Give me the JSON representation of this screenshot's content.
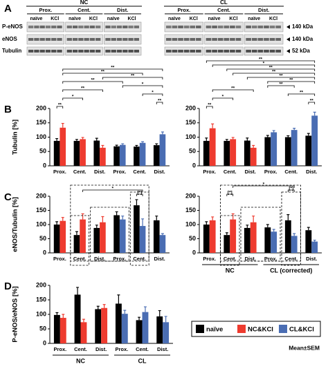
{
  "blot": {
    "panel": "A",
    "groups": [
      "NC",
      "CL"
    ],
    "regions": [
      "Prox.",
      "Cent.",
      "Dist."
    ],
    "conditions": [
      "naïve",
      "KCl"
    ],
    "rows": [
      {
        "label": "P-eNOS",
        "size": "140 kDa"
      },
      {
        "label": "eNOS",
        "size": "140 kDa"
      },
      {
        "label": "Tubulin",
        "size": "52 kDa"
      }
    ]
  },
  "legend": {
    "note": "Mean±SEM"
  },
  "chart_data": [
    {
      "type": "bar",
      "panel": "B",
      "ylabel": "Tubulin [%]",
      "categories": [
        "Prox.",
        "Cent.",
        "Dist.",
        "Prox.",
        "Cent.",
        "Dist."
      ],
      "ylim": [
        0,
        200
      ],
      "yticks": [
        0,
        50,
        100,
        150,
        200
      ],
      "series": [
        {
          "color": "#000000",
          "values": [
            87,
            87,
            88,
            68,
            67,
            72
          ],
          "errors": [
            8,
            5,
            8,
            4,
            4,
            5
          ]
        },
        {
          "color": "#ee3b2f",
          "values": [
            133,
            93,
            63,
            null,
            null,
            null
          ],
          "errors": [
            15,
            6,
            8,
            null,
            null,
            null
          ]
        },
        {
          "color": "#4a6db3",
          "values": [
            null,
            null,
            null,
            73,
            80,
            110
          ],
          "errors": [
            null,
            null,
            null,
            4,
            4,
            8
          ]
        }
      ],
      "brackets": [
        {
          "bars": [
            0,
            1
          ],
          "label": "**"
        },
        {
          "bars": [
            10,
            11
          ],
          "label": "**"
        },
        {
          "bars": [
            1,
            3
          ],
          "label": "*"
        },
        {
          "bars": [
            9,
            11
          ],
          "label": "*"
        },
        {
          "bars": [
            1,
            5
          ],
          "label": "**"
        },
        {
          "bars": [
            7,
            11
          ],
          "label": "*"
        },
        {
          "bars": [
            1,
            7
          ],
          "label": "**"
        },
        {
          "bars": [
            5,
            11
          ],
          "label": "**"
        },
        {
          "bars": [
            1,
            9
          ],
          "label": "**"
        },
        {
          "bars": [
            1,
            11
          ],
          "label": "**"
        }
      ]
    },
    {
      "type": "bar",
      "categories": [
        "Prox.",
        "Cent.",
        "Dist.",
        "Prox.",
        "Cent.",
        "Dist."
      ],
      "ylim": [
        0,
        200
      ],
      "yticks": [
        0,
        50,
        100,
        150,
        200
      ],
      "series": [
        {
          "color": "#000000",
          "values": [
            87,
            87,
            88,
            100,
            100,
            105
          ],
          "errors": [
            10,
            5,
            9,
            6,
            5,
            8
          ]
        },
        {
          "color": "#ee3b2f",
          "values": [
            131,
            93,
            63,
            null,
            null,
            null
          ],
          "errors": [
            15,
            6,
            8,
            null,
            null,
            null
          ]
        },
        {
          "color": "#4a6db3",
          "values": [
            null,
            null,
            null,
            117,
            125,
            175
          ],
          "errors": [
            null,
            null,
            null,
            6,
            6,
            12
          ]
        }
      ],
      "brackets": [
        {
          "bars": [
            0,
            1
          ],
          "label": "**"
        },
        {
          "bars": [
            10,
            11
          ],
          "label": "**"
        },
        {
          "bars": [
            1,
            3
          ],
          "label": "*"
        },
        {
          "bars": [
            8,
            11
          ],
          "label": "**"
        },
        {
          "bars": [
            1,
            5
          ],
          "label": "**"
        },
        {
          "bars": [
            6,
            9
          ],
          "label": "**"
        },
        {
          "bars": [
            6,
            11
          ],
          "label": "**"
        },
        {
          "bars": [
            4,
            11
          ],
          "label": "**"
        },
        {
          "bars": [
            3,
            11
          ],
          "label": "**"
        },
        {
          "bars": [
            2,
            11
          ],
          "label": "**"
        },
        {
          "bars": [
            1,
            11
          ],
          "label": "*"
        },
        {
          "bars": [
            0,
            11
          ],
          "label": "**"
        }
      ]
    },
    {
      "type": "bar",
      "panel": "C",
      "ylabel": "eNOS/Tubulin [%]",
      "categories": [
        "Prox.",
        "Cent.",
        "Dist.",
        "Prox.",
        "Cent.",
        "Dist."
      ],
      "ylim": [
        0,
        200
      ],
      "yticks": [
        0,
        50,
        100,
        150,
        200
      ],
      "series": [
        {
          "color": "#000000",
          "values": [
            100,
            63,
            88,
            133,
            168,
            115
          ],
          "errors": [
            10,
            12,
            10,
            12,
            20,
            15
          ]
        },
        {
          "color": "#ee3b2f",
          "values": [
            113,
            118,
            108,
            null,
            null,
            null
          ],
          "errors": [
            12,
            20,
            20,
            null,
            null,
            null
          ]
        },
        {
          "color": "#4a6db3",
          "values": [
            null,
            null,
            null,
            118,
            95,
            63
          ],
          "errors": [
            null,
            null,
            null,
            12,
            25,
            5
          ]
        }
      ],
      "brackets": [
        {
          "bars": [
            8,
            9
          ],
          "label": "[*]"
        },
        {
          "bars": [
            3,
            9
          ],
          "label": "*"
        }
      ]
    },
    {
      "type": "bar",
      "categories": [
        "Prox.",
        "Cent.",
        "Dist.",
        "Prox.",
        "Cent.",
        "Dist."
      ],
      "ylim": [
        0,
        200
      ],
      "yticks": [
        0,
        50,
        100,
        150,
        200
      ],
      "groups": [
        "NC",
        "CL (corrected)"
      ],
      "series": [
        {
          "color": "#000000",
          "values": [
            100,
            63,
            88,
            90,
            115,
            80
          ],
          "errors": [
            10,
            8,
            10,
            10,
            20,
            10
          ]
        },
        {
          "color": "#ee3b2f",
          "values": [
            115,
            118,
            108,
            null,
            null,
            null
          ],
          "errors": [
            12,
            20,
            22,
            null,
            null,
            null
          ]
        },
        {
          "color": "#4a6db3",
          "values": [
            null,
            null,
            null,
            75,
            60,
            40
          ],
          "errors": [
            null,
            null,
            null,
            8,
            8,
            5
          ]
        }
      ],
      "brackets": [
        {
          "bars": [
            2,
            3
          ],
          "label": "[*]"
        },
        {
          "bars": [
            8,
            9
          ],
          "label": "[*]"
        },
        {
          "bars": [
            3,
            9
          ],
          "label": "*"
        }
      ]
    },
    {
      "type": "bar",
      "panel": "D",
      "ylabel": "P-eNOS/eNOS [%]",
      "categories": [
        "Prox.",
        "Cent.",
        "Dist.",
        "Prox.",
        "Cent.",
        "Dist."
      ],
      "ylim": [
        0,
        200
      ],
      "yticks": [
        0,
        50,
        100,
        150,
        200
      ],
      "groups": [
        "NC",
        "CL"
      ],
      "series": [
        {
          "name": "naïve",
          "color": "#000000",
          "values": [
            98,
            168,
            118,
            137,
            80,
            93
          ],
          "errors": [
            8,
            25,
            10,
            30,
            10,
            20
          ]
        },
        {
          "name": "NC&KCl",
          "color": "#ee3b2f",
          "values": [
            88,
            73,
            122,
            null,
            null,
            null
          ],
          "errors": [
            12,
            10,
            12,
            null,
            null,
            null
          ]
        },
        {
          "name": "CL&KCl",
          "color": "#4a6db3",
          "values": [
            null,
            null,
            null,
            102,
            108,
            73
          ],
          "errors": [
            null,
            null,
            null,
            12,
            18,
            20
          ]
        }
      ],
      "brackets": []
    }
  ]
}
